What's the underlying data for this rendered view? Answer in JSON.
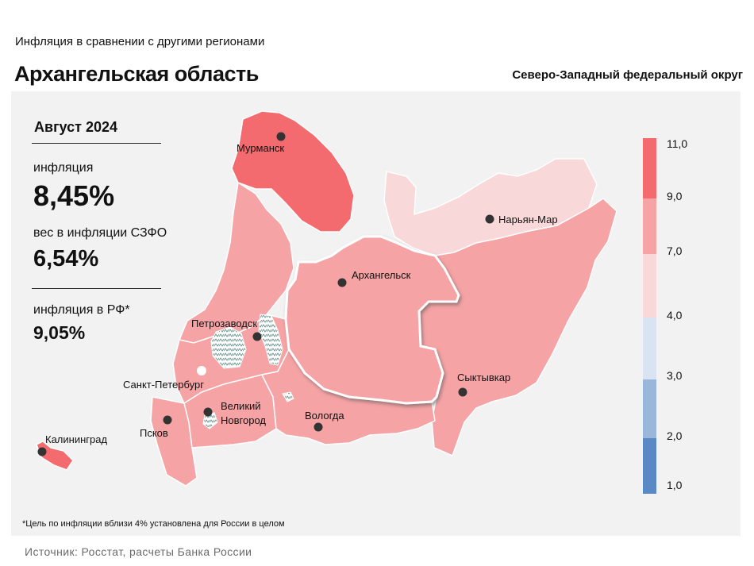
{
  "header": {
    "subtitle": "Инфляция в сравнении с другими регионами",
    "title": "Архангельская область",
    "district": "Северо-Западный федеральный округ"
  },
  "stats": {
    "period": "Август 2024",
    "inflation_label": "инфляция",
    "inflation_value": "8,45%",
    "weight_label": "вес в инфляции СЗФО",
    "weight_value": "6,54%",
    "rf_label": "инфляция в РФ*",
    "rf_value": "9,05%"
  },
  "cities": {
    "murmansk": "Мурманск",
    "naryan_mar": "Нарьян-Мар",
    "arkhangelsk": "Архангельск",
    "petrozavodsk": "Петрозаводск",
    "spb": "Санкт-Петербург",
    "novgorod_1": "Великий",
    "novgorod_2": "Новгород",
    "syktyvkar": "Сыктывкар",
    "vologda": "Вологда",
    "pskov": "Псков",
    "kaliningrad": "Калининград"
  },
  "legend": {
    "ticks": [
      "11,0",
      "9,0",
      "7,0",
      "4,0",
      "3,0",
      "2,0",
      "1,0"
    ],
    "colors": [
      "#f36b6e",
      "#f6a3a5",
      "#f9d8da",
      "#d9e3f2",
      "#9bb6db",
      "#5b89c6"
    ]
  },
  "map_colors": {
    "high": "#f36b6e",
    "mid": "#f6a3a5",
    "low": "#f9d8da"
  },
  "footnote": "*Цель по инфляции вблизи 4% установлена для России в целом",
  "source": "Источник: Росстат, расчеты Банка России"
}
